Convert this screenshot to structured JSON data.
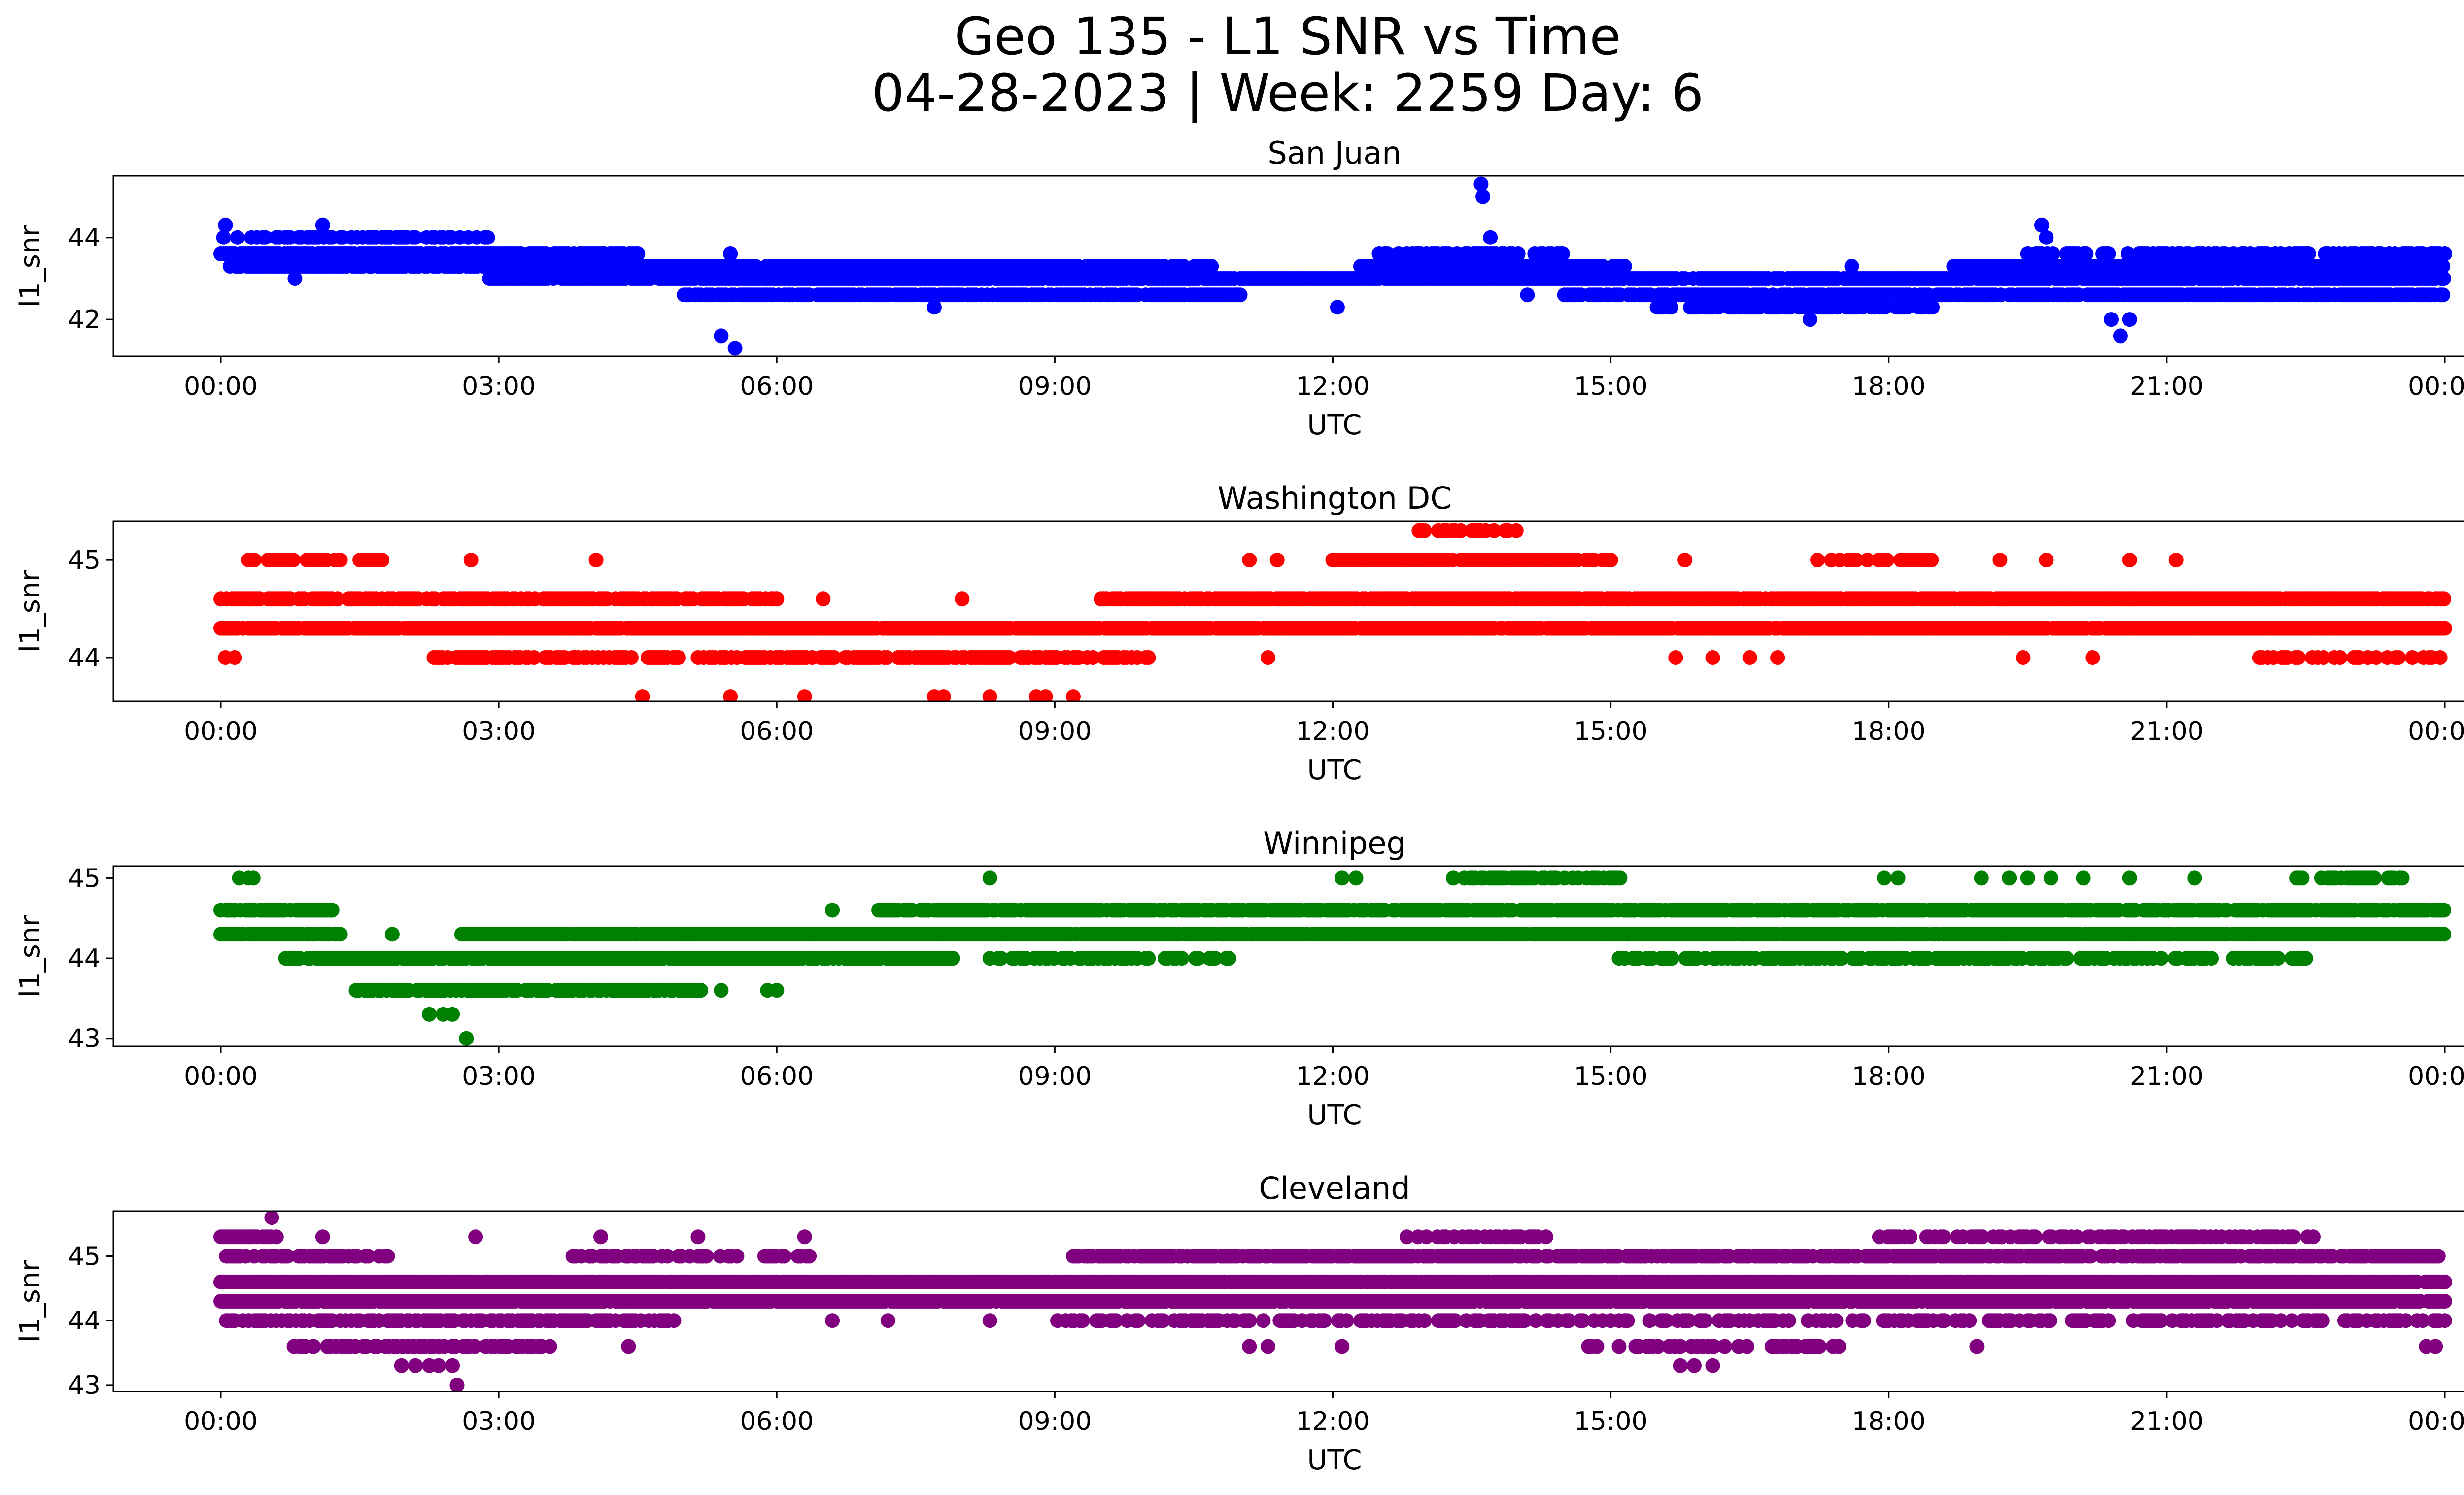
{
  "title_line1": "Geo 135 - L1 SNR vs Time",
  "title_line2": "04-28-2023 | Week: 2259 Day: 6",
  "chart_data": [
    {
      "type": "scatter",
      "title": "San Juan",
      "xlabel": "UTC",
      "ylabel": "l1_snr",
      "color": "#0000ff",
      "xlim_hours": [
        0,
        24
      ],
      "ylim": [
        41.1,
        45.5
      ],
      "x_tick_labels": [
        "00:00",
        "03:00",
        "06:00",
        "09:00",
        "12:00",
        "15:00",
        "18:00",
        "21:00",
        "00:00"
      ],
      "y_ticks": [
        42,
        44
      ],
      "bands": [
        {
          "y": 44.0,
          "from": 0.0,
          "to": 2.9,
          "density": 0.55
        },
        {
          "y": 43.6,
          "from": 0.0,
          "to": 4.5,
          "density": 0.9
        },
        {
          "y": 43.3,
          "from": 0.1,
          "to": 10.7,
          "density": 0.85
        },
        {
          "y": 43.3,
          "from": 12.3,
          "to": 15.2,
          "density": 0.8
        },
        {
          "y": 43.3,
          "from": 18.7,
          "to": 24.0,
          "density": 0.85
        },
        {
          "y": 43.0,
          "from": 2.9,
          "to": 24.0,
          "density": 0.95
        },
        {
          "y": 42.6,
          "from": 5.0,
          "to": 11.0,
          "density": 0.85
        },
        {
          "y": 42.6,
          "from": 14.5,
          "to": 24.0,
          "density": 0.85
        },
        {
          "y": 42.3,
          "from": 15.5,
          "to": 18.5,
          "density": 0.7
        },
        {
          "y": 43.6,
          "from": 12.5,
          "to": 14.5,
          "density": 0.6
        },
        {
          "y": 43.6,
          "from": 19.5,
          "to": 24.0,
          "density": 0.6
        }
      ],
      "outliers": [
        [
          0.05,
          44.3
        ],
        [
          0.8,
          43.0
        ],
        [
          1.1,
          44.3
        ],
        [
          5.4,
          41.6
        ],
        [
          5.55,
          41.3
        ],
        [
          5.5,
          43.6
        ],
        [
          7.7,
          42.3
        ],
        [
          12.05,
          42.3
        ],
        [
          12.9,
          43.6
        ],
        [
          13.6,
          45.3
        ],
        [
          13.62,
          45.0
        ],
        [
          13.7,
          44.0
        ],
        [
          14.1,
          42.6
        ],
        [
          17.15,
          42.0
        ],
        [
          17.6,
          43.3
        ],
        [
          19.65,
          44.3
        ],
        [
          19.7,
          44.0
        ],
        [
          20.4,
          42.0
        ],
        [
          20.5,
          41.6
        ],
        [
          20.6,
          42.0
        ]
      ]
    },
    {
      "type": "scatter",
      "title": "Washington DC",
      "xlabel": "UTC",
      "ylabel": "l1_snr",
      "color": "#ff0000",
      "xlim_hours": [
        0,
        24
      ],
      "ylim": [
        43.55,
        45.4
      ],
      "x_tick_labels": [
        "00:00",
        "03:00",
        "06:00",
        "09:00",
        "12:00",
        "15:00",
        "18:00",
        "21:00",
        "00:00"
      ],
      "y_ticks": [
        44,
        45
      ],
      "bands": [
        {
          "y": 44.3,
          "from": 0.0,
          "to": 24.0,
          "density": 0.97
        },
        {
          "y": 44.6,
          "from": 0.0,
          "to": 6.0,
          "density": 0.8
        },
        {
          "y": 44.6,
          "from": 9.5,
          "to": 24.0,
          "density": 0.95
        },
        {
          "y": 45.0,
          "from": 0.3,
          "to": 1.9,
          "density": 0.5
        },
        {
          "y": 45.0,
          "from": 12.0,
          "to": 15.0,
          "density": 0.85
        },
        {
          "y": 45.0,
          "from": 17.2,
          "to": 18.5,
          "density": 0.35
        },
        {
          "y": 44.0,
          "from": 2.3,
          "to": 10.1,
          "density": 0.7
        },
        {
          "y": 44.0,
          "from": 22.0,
          "to": 24.0,
          "density": 0.35
        },
        {
          "y": 45.3,
          "from": 12.9,
          "to": 14.0,
          "density": 0.4
        }
      ],
      "outliers": [
        [
          0.05,
          44.0
        ],
        [
          0.15,
          44.0
        ],
        [
          2.7,
          45.0
        ],
        [
          4.05,
          45.0
        ],
        [
          4.55,
          43.6
        ],
        [
          5.5,
          43.6
        ],
        [
          6.3,
          43.6
        ],
        [
          6.5,
          44.6
        ],
        [
          7.7,
          43.6
        ],
        [
          7.8,
          43.6
        ],
        [
          8.0,
          44.6
        ],
        [
          8.3,
          43.6
        ],
        [
          8.8,
          43.6
        ],
        [
          8.9,
          43.6
        ],
        [
          9.2,
          43.6
        ],
        [
          11.1,
          45.0
        ],
        [
          11.4,
          45.0
        ],
        [
          11.3,
          44.0
        ],
        [
          12.7,
          44.3
        ],
        [
          15.8,
          45.0
        ],
        [
          15.7,
          44.0
        ],
        [
          16.1,
          44.0
        ],
        [
          16.5,
          44.0
        ],
        [
          16.8,
          44.0
        ],
        [
          19.2,
          45.0
        ],
        [
          19.45,
          44.0
        ],
        [
          19.7,
          45.0
        ],
        [
          20.2,
          44.0
        ],
        [
          20.6,
          45.0
        ],
        [
          21.1,
          45.0
        ]
      ]
    },
    {
      "type": "scatter",
      "title": "Winnipeg",
      "xlabel": "UTC",
      "ylabel": "l1_snr",
      "color": "#008000",
      "xlim_hours": [
        0,
        24
      ],
      "ylim": [
        42.9,
        45.15
      ],
      "x_tick_labels": [
        "00:00",
        "03:00",
        "06:00",
        "09:00",
        "12:00",
        "15:00",
        "18:00",
        "21:00",
        "00:00"
      ],
      "y_ticks": [
        43,
        44,
        45
      ],
      "bands": [
        {
          "y": 44.3,
          "from": 0.0,
          "to": 1.3,
          "density": 0.9
        },
        {
          "y": 44.3,
          "from": 2.6,
          "to": 24.0,
          "density": 0.97
        },
        {
          "y": 44.6,
          "from": 0.0,
          "to": 1.2,
          "density": 0.9
        },
        {
          "y": 44.6,
          "from": 7.1,
          "to": 24.0,
          "density": 0.9
        },
        {
          "y": 44.0,
          "from": 0.7,
          "to": 7.9,
          "density": 0.95
        },
        {
          "y": 44.0,
          "from": 8.3,
          "to": 11.0,
          "density": 0.5
        },
        {
          "y": 44.0,
          "from": 15.0,
          "to": 22.5,
          "density": 0.6
        },
        {
          "y": 43.6,
          "from": 1.4,
          "to": 5.2,
          "density": 0.75
        },
        {
          "y": 45.0,
          "from": 13.3,
          "to": 15.1,
          "density": 0.45
        },
        {
          "y": 45.0,
          "from": 22.4,
          "to": 23.7,
          "density": 0.55
        }
      ],
      "outliers": [
        [
          0.2,
          45.0
        ],
        [
          0.35,
          45.0
        ],
        [
          0.3,
          45.0
        ],
        [
          1.85,
          44.3
        ],
        [
          2.25,
          43.3
        ],
        [
          2.4,
          43.3
        ],
        [
          2.5,
          43.3
        ],
        [
          2.65,
          43.0
        ],
        [
          5.4,
          43.6
        ],
        [
          5.9,
          43.6
        ],
        [
          6.0,
          43.6
        ],
        [
          6.6,
          44.6
        ],
        [
          8.3,
          45.0
        ],
        [
          12.1,
          45.0
        ],
        [
          12.25,
          45.0
        ],
        [
          17.95,
          45.0
        ],
        [
          18.1,
          45.0
        ],
        [
          19.0,
          45.0
        ],
        [
          19.3,
          45.0
        ],
        [
          19.5,
          45.0
        ],
        [
          19.75,
          45.0
        ],
        [
          20.1,
          45.0
        ],
        [
          20.6,
          45.0
        ],
        [
          21.3,
          45.0
        ]
      ]
    },
    {
      "type": "scatter",
      "title": "Cleveland",
      "xlabel": "UTC",
      "ylabel": "l1_snr",
      "color": "#800080",
      "xlim_hours": [
        0,
        24
      ],
      "ylim": [
        42.9,
        45.7
      ],
      "x_tick_labels": [
        "00:00",
        "03:00",
        "06:00",
        "09:00",
        "12:00",
        "15:00",
        "18:00",
        "21:00",
        "00:00"
      ],
      "y_ticks": [
        43,
        44,
        45
      ],
      "bands": [
        {
          "y": 44.6,
          "from": 0.0,
          "to": 24.0,
          "density": 0.97
        },
        {
          "y": 44.3,
          "from": 0.0,
          "to": 24.0,
          "density": 0.97
        },
        {
          "y": 45.0,
          "from": 0.0,
          "to": 1.8,
          "density": 0.7
        },
        {
          "y": 45.0,
          "from": 3.8,
          "to": 6.4,
          "density": 0.45
        },
        {
          "y": 45.0,
          "from": 9.2,
          "to": 24.0,
          "density": 0.85
        },
        {
          "y": 44.0,
          "from": 0.0,
          "to": 4.9,
          "density": 0.7
        },
        {
          "y": 44.0,
          "from": 9.0,
          "to": 24.0,
          "density": 0.5
        },
        {
          "y": 43.6,
          "from": 0.7,
          "to": 3.6,
          "density": 0.5
        },
        {
          "y": 43.6,
          "from": 14.7,
          "to": 17.6,
          "density": 0.45
        },
        {
          "y": 45.3,
          "from": 12.8,
          "to": 14.3,
          "density": 0.5
        },
        {
          "y": 45.3,
          "from": 17.9,
          "to": 22.6,
          "density": 0.55
        },
        {
          "y": 45.3,
          "from": 0.0,
          "to": 0.6,
          "density": 0.9
        }
      ],
      "outliers": [
        [
          0.55,
          45.6
        ],
        [
          1.1,
          45.3
        ],
        [
          1.95,
          43.3
        ],
        [
          2.1,
          43.3
        ],
        [
          2.25,
          43.3
        ],
        [
          2.35,
          43.3
        ],
        [
          2.5,
          43.3
        ],
        [
          2.55,
          43.0
        ],
        [
          2.75,
          45.3
        ],
        [
          4.1,
          45.3
        ],
        [
          4.4,
          43.6
        ],
        [
          5.15,
          45.3
        ],
        [
          6.3,
          45.3
        ],
        [
          6.6,
          44.0
        ],
        [
          7.2,
          44.0
        ],
        [
          8.3,
          44.0
        ],
        [
          11.1,
          43.6
        ],
        [
          11.3,
          43.6
        ],
        [
          12.1,
          43.6
        ],
        [
          15.75,
          43.3
        ],
        [
          15.9,
          43.3
        ],
        [
          16.1,
          43.3
        ],
        [
          18.95,
          43.6
        ],
        [
          23.8,
          43.6
        ],
        [
          23.9,
          43.6
        ]
      ]
    }
  ]
}
